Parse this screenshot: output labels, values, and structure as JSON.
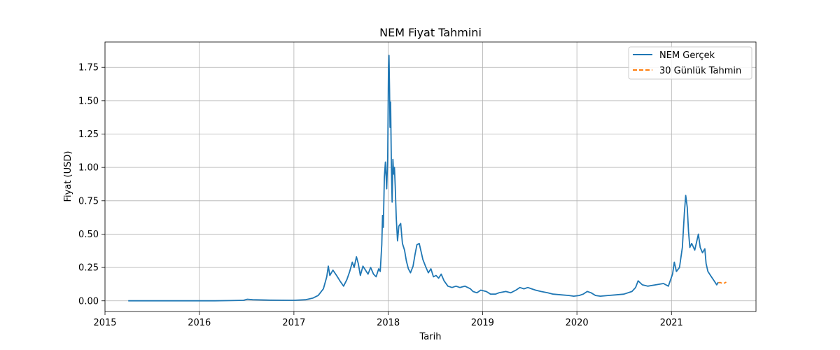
{
  "chart_data": {
    "type": "line",
    "title": "NEM Fiyat Tahmini",
    "xlabel": "Tarih",
    "ylabel": "Fiyat (USD)",
    "xlim": [
      "2015-01-01",
      "2021-11-24"
    ],
    "ylim": [
      -0.08,
      1.94
    ],
    "x_ticks": [
      "2015",
      "2016",
      "2017",
      "2018",
      "2019",
      "2020",
      "2021"
    ],
    "y_ticks": [
      "0.00",
      "0.25",
      "0.50",
      "0.75",
      "1.00",
      "1.25",
      "1.50",
      "1.75"
    ],
    "grid": true,
    "legend_position": "top-right",
    "series": [
      {
        "name": "NEM Gerçek",
        "color": "#1f77b4",
        "style": "solid",
        "points": [
          [
            "2015-04-01",
            0.0003
          ],
          [
            "2015-07-01",
            0.0002
          ],
          [
            "2015-10-01",
            0.0002
          ],
          [
            "2016-01-01",
            0.0001
          ],
          [
            "2016-03-01",
            0.0005
          ],
          [
            "2016-05-01",
            0.002
          ],
          [
            "2016-06-20",
            0.004
          ],
          [
            "2016-07-05",
            0.012
          ],
          [
            "2016-07-25",
            0.008
          ],
          [
            "2016-10-01",
            0.005
          ],
          [
            "2017-01-01",
            0.004
          ],
          [
            "2017-02-15",
            0.008
          ],
          [
            "2017-03-15",
            0.02
          ],
          [
            "2017-04-05",
            0.04
          ],
          [
            "2017-04-25",
            0.09
          ],
          [
            "2017-05-08",
            0.18
          ],
          [
            "2017-05-14",
            0.26
          ],
          [
            "2017-05-20",
            0.19
          ],
          [
            "2017-06-01",
            0.23
          ],
          [
            "2017-06-15",
            0.19
          ],
          [
            "2017-06-28",
            0.15
          ],
          [
            "2017-07-12",
            0.11
          ],
          [
            "2017-07-25",
            0.16
          ],
          [
            "2017-08-05",
            0.22
          ],
          [
            "2017-08-15",
            0.29
          ],
          [
            "2017-08-22",
            0.25
          ],
          [
            "2017-08-31",
            0.33
          ],
          [
            "2017-09-07",
            0.28
          ],
          [
            "2017-09-15",
            0.19
          ],
          [
            "2017-09-25",
            0.26
          ],
          [
            "2017-10-05",
            0.23
          ],
          [
            "2017-10-15",
            0.2
          ],
          [
            "2017-10-25",
            0.25
          ],
          [
            "2017-11-05",
            0.2
          ],
          [
            "2017-11-15",
            0.18
          ],
          [
            "2017-11-25",
            0.24
          ],
          [
            "2017-12-01",
            0.22
          ],
          [
            "2017-12-07",
            0.42
          ],
          [
            "2017-12-10",
            0.64
          ],
          [
            "2017-12-13",
            0.55
          ],
          [
            "2017-12-17",
            0.93
          ],
          [
            "2017-12-21",
            1.04
          ],
          [
            "2017-12-26",
            0.84
          ],
          [
            "2017-12-30",
            1.08
          ],
          [
            "2018-01-02",
            1.75
          ],
          [
            "2018-01-04",
            1.84
          ],
          [
            "2018-01-06",
            1.58
          ],
          [
            "2018-01-08",
            1.3
          ],
          [
            "2018-01-10",
            1.49
          ],
          [
            "2018-01-13",
            1.02
          ],
          [
            "2018-01-16",
            0.74
          ],
          [
            "2018-01-19",
            1.06
          ],
          [
            "2018-01-22",
            0.95
          ],
          [
            "2018-01-25",
            1.0
          ],
          [
            "2018-01-28",
            0.86
          ],
          [
            "2018-02-01",
            0.62
          ],
          [
            "2018-02-06",
            0.45
          ],
          [
            "2018-02-11",
            0.56
          ],
          [
            "2018-02-18",
            0.58
          ],
          [
            "2018-02-25",
            0.43
          ],
          [
            "2018-03-05",
            0.38
          ],
          [
            "2018-03-12",
            0.3
          ],
          [
            "2018-03-20",
            0.24
          ],
          [
            "2018-03-28",
            0.21
          ],
          [
            "2018-04-07",
            0.26
          ],
          [
            "2018-04-15",
            0.35
          ],
          [
            "2018-04-22",
            0.42
          ],
          [
            "2018-05-01",
            0.43
          ],
          [
            "2018-05-08",
            0.37
          ],
          [
            "2018-05-15",
            0.31
          ],
          [
            "2018-05-25",
            0.26
          ],
          [
            "2018-06-05",
            0.21
          ],
          [
            "2018-06-15",
            0.24
          ],
          [
            "2018-06-25",
            0.18
          ],
          [
            "2018-07-05",
            0.19
          ],
          [
            "2018-07-15",
            0.17
          ],
          [
            "2018-07-25",
            0.2
          ],
          [
            "2018-08-05",
            0.15
          ],
          [
            "2018-08-20",
            0.11
          ],
          [
            "2018-09-05",
            0.1
          ],
          [
            "2018-09-20",
            0.11
          ],
          [
            "2018-10-05",
            0.1
          ],
          [
            "2018-10-25",
            0.11
          ],
          [
            "2018-11-15",
            0.09
          ],
          [
            "2018-11-25",
            0.07
          ],
          [
            "2018-12-10",
            0.06
          ],
          [
            "2018-12-25",
            0.08
          ],
          [
            "2019-01-15",
            0.07
          ],
          [
            "2019-02-01",
            0.05
          ],
          [
            "2019-02-20",
            0.05
          ],
          [
            "2019-03-05",
            0.06
          ],
          [
            "2019-04-01",
            0.07
          ],
          [
            "2019-04-20",
            0.06
          ],
          [
            "2019-05-10",
            0.08
          ],
          [
            "2019-05-25",
            0.1
          ],
          [
            "2019-06-10",
            0.09
          ],
          [
            "2019-06-25",
            0.1
          ],
          [
            "2019-07-10",
            0.09
          ],
          [
            "2019-07-25",
            0.08
          ],
          [
            "2019-08-15",
            0.07
          ],
          [
            "2019-09-10",
            0.06
          ],
          [
            "2019-10-01",
            0.05
          ],
          [
            "2019-11-01",
            0.045
          ],
          [
            "2019-12-01",
            0.04
          ],
          [
            "2019-12-20",
            0.035
          ],
          [
            "2020-01-10",
            0.04
          ],
          [
            "2020-01-25",
            0.05
          ],
          [
            "2020-02-10",
            0.07
          ],
          [
            "2020-02-25",
            0.06
          ],
          [
            "2020-03-13",
            0.04
          ],
          [
            "2020-04-01",
            0.035
          ],
          [
            "2020-05-01",
            0.04
          ],
          [
            "2020-06-01",
            0.045
          ],
          [
            "2020-07-01",
            0.05
          ],
          [
            "2020-08-01",
            0.07
          ],
          [
            "2020-08-15",
            0.1
          ],
          [
            "2020-08-25",
            0.15
          ],
          [
            "2020-09-10",
            0.12
          ],
          [
            "2020-10-01",
            0.11
          ],
          [
            "2020-11-01",
            0.12
          ],
          [
            "2020-12-01",
            0.13
          ],
          [
            "2020-12-20",
            0.11
          ],
          [
            "2021-01-05",
            0.2
          ],
          [
            "2021-01-12",
            0.29
          ],
          [
            "2021-01-20",
            0.22
          ],
          [
            "2021-02-01",
            0.25
          ],
          [
            "2021-02-12",
            0.4
          ],
          [
            "2021-02-20",
            0.66
          ],
          [
            "2021-02-25",
            0.79
          ],
          [
            "2021-03-03",
            0.7
          ],
          [
            "2021-03-08",
            0.52
          ],
          [
            "2021-03-13",
            0.4
          ],
          [
            "2021-03-20",
            0.43
          ],
          [
            "2021-04-01",
            0.38
          ],
          [
            "2021-04-15",
            0.5
          ],
          [
            "2021-04-22",
            0.4
          ],
          [
            "2021-05-01",
            0.36
          ],
          [
            "2021-05-10",
            0.39
          ],
          [
            "2021-05-15",
            0.28
          ],
          [
            "2021-05-22",
            0.22
          ],
          [
            "2021-06-01",
            0.19
          ],
          [
            "2021-06-15",
            0.15
          ],
          [
            "2021-06-25",
            0.12
          ],
          [
            "2021-07-01",
            0.14
          ]
        ]
      },
      {
        "name": "30 Günlük Tahmin",
        "color": "#ff7f0e",
        "style": "dashed",
        "points": [
          [
            "2021-07-02",
            0.135
          ],
          [
            "2021-07-08",
            0.138
          ],
          [
            "2021-07-14",
            0.133
          ],
          [
            "2021-07-20",
            0.13
          ],
          [
            "2021-07-26",
            0.134
          ],
          [
            "2021-08-01",
            0.14
          ]
        ]
      }
    ]
  }
}
